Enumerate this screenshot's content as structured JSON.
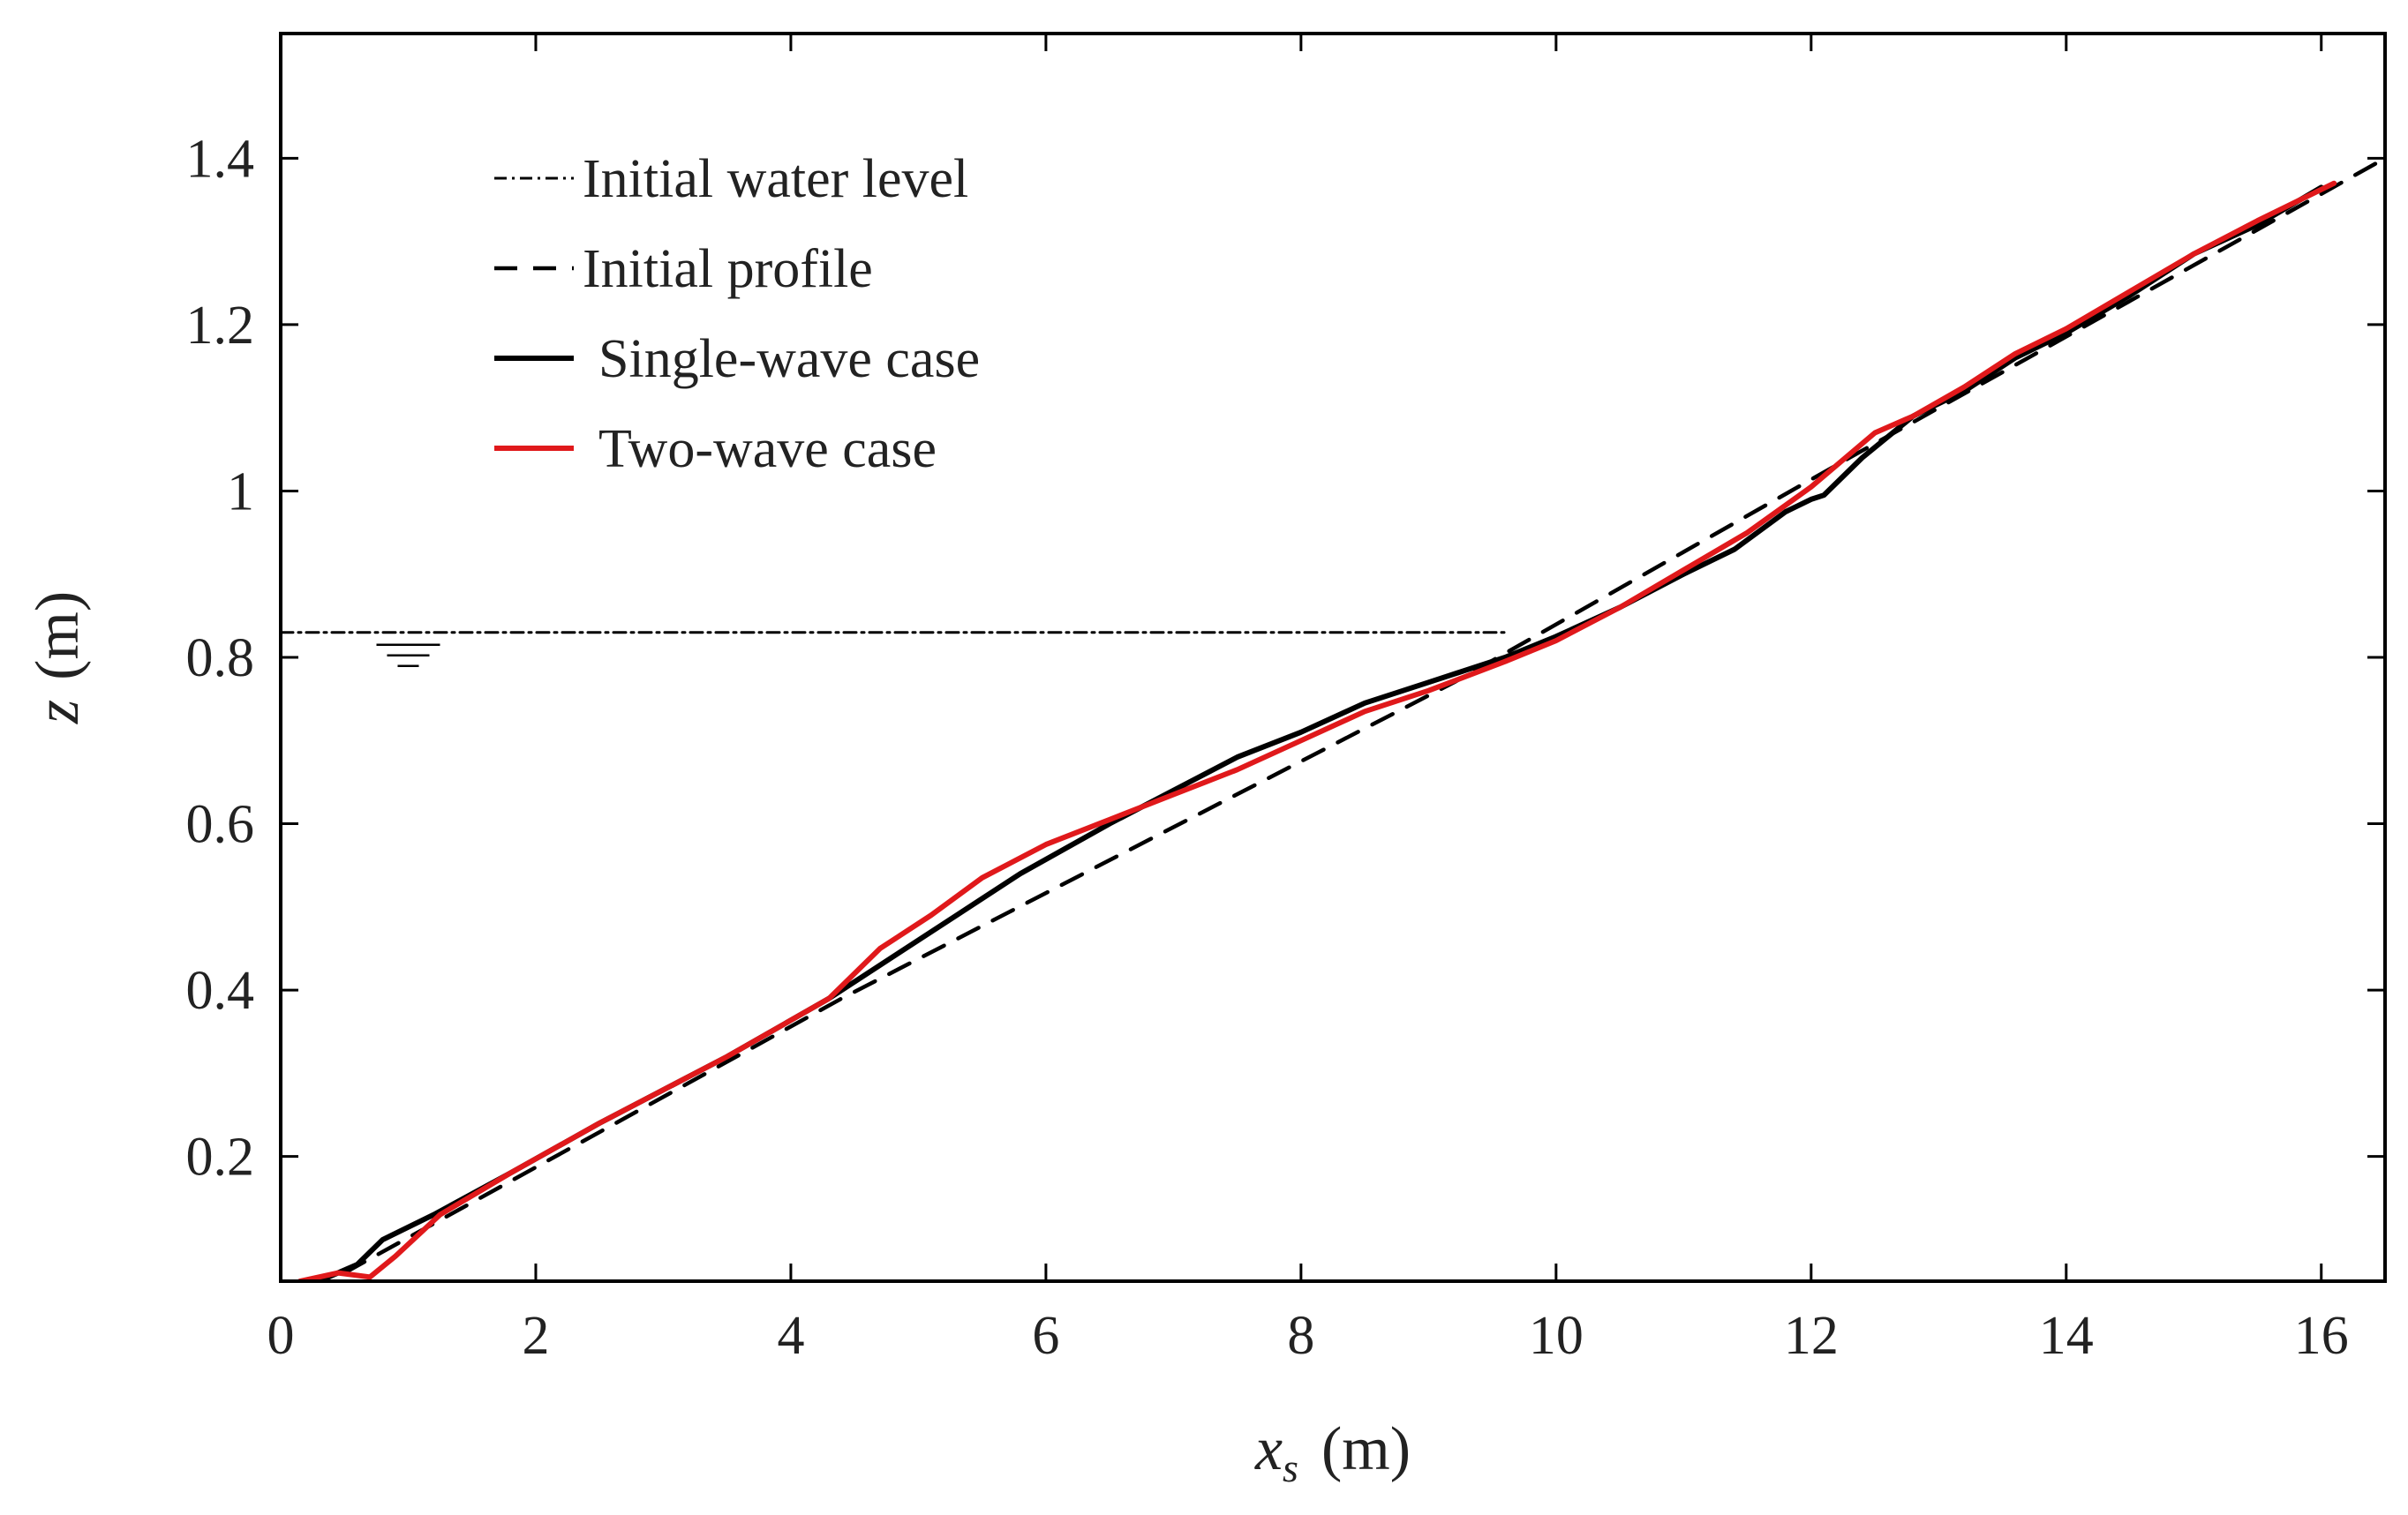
{
  "chart_data": {
    "type": "line",
    "title": "",
    "xlabel": {
      "symbol": "x",
      "subscript": "s",
      "unit": "(m)"
    },
    "ylabel": {
      "symbol": "z",
      "unit": "(m)"
    },
    "xlim": [
      0,
      16.5
    ],
    "ylim": [
      0.05,
      1.55
    ],
    "xticks": [
      0,
      2,
      4,
      6,
      8,
      10,
      12,
      14,
      16
    ],
    "yticks": [
      0.2,
      0.4,
      0.6,
      0.8,
      1,
      1.2,
      1.4
    ],
    "xtick_labels": [
      "0",
      "2",
      "4",
      "6",
      "8",
      "10",
      "12",
      "14",
      "16"
    ],
    "ytick_labels": [
      "0.2",
      "0.4",
      "0.6",
      "0.8",
      "1",
      "1.2",
      "1.4"
    ],
    "grid": false,
    "legend_position": "top-left",
    "water_symbol": {
      "x": 1.0,
      "y": 0.83
    },
    "series": [
      {
        "name": "Initial water level",
        "color": "#000000",
        "style": "dashdot",
        "x": [
          0,
          9.6
        ],
        "y": [
          0.83,
          0.83
        ]
      },
      {
        "name": "Initial profile",
        "color": "#000000",
        "style": "dashed",
        "x": [
          0.5,
          4.4,
          9.2,
          12.3,
          16.5
        ],
        "y": [
          0.06,
          0.39,
          0.77,
          1.04,
          1.4
        ]
      },
      {
        "name": "Single-wave case",
        "color": "#000000",
        "style": "solid",
        "x": [
          0.3,
          0.6,
          0.8,
          1.2,
          1.8,
          2.5,
          3.5,
          4.3,
          4.8,
          5.3,
          5.8,
          6.5,
          7.0,
          7.5,
          8.0,
          8.5,
          9.0,
          9.6,
          10.0,
          10.5,
          11.0,
          11.4,
          11.8,
          12.0,
          12.1,
          12.4,
          12.8,
          13.2,
          13.6,
          14.0,
          14.5,
          15.0,
          15.5,
          16.0
        ],
        "y": [
          0.05,
          0.07,
          0.1,
          0.13,
          0.18,
          0.24,
          0.32,
          0.39,
          0.44,
          0.49,
          0.54,
          0.6,
          0.64,
          0.68,
          0.71,
          0.745,
          0.77,
          0.8,
          0.825,
          0.86,
          0.9,
          0.93,
          0.975,
          0.99,
          0.995,
          1.04,
          1.09,
          1.12,
          1.16,
          1.19,
          1.235,
          1.285,
          1.32,
          1.365
        ]
      },
      {
        "name": "Two-wave case",
        "color": "#e0191b",
        "style": "solid",
        "x": [
          0.15,
          0.45,
          0.7,
          0.9,
          1.25,
          1.8,
          2.5,
          3.5,
          4.3,
          4.7,
          5.1,
          5.5,
          6.0,
          6.5,
          7.0,
          7.5,
          8.0,
          8.5,
          9.0,
          9.6,
          10.0,
          10.5,
          11.0,
          11.5,
          12.0,
          12.5,
          12.8,
          13.2,
          13.6,
          14.0,
          14.5,
          15.0,
          15.5,
          16.1
        ],
        "y": [
          0.05,
          0.06,
          0.055,
          0.08,
          0.13,
          0.18,
          0.24,
          0.32,
          0.39,
          0.45,
          0.49,
          0.535,
          0.575,
          0.605,
          0.635,
          0.665,
          0.7,
          0.735,
          0.76,
          0.795,
          0.82,
          0.86,
          0.905,
          0.95,
          1.005,
          1.07,
          1.09,
          1.125,
          1.165,
          1.195,
          1.24,
          1.285,
          1.325,
          1.37
        ]
      }
    ]
  }
}
